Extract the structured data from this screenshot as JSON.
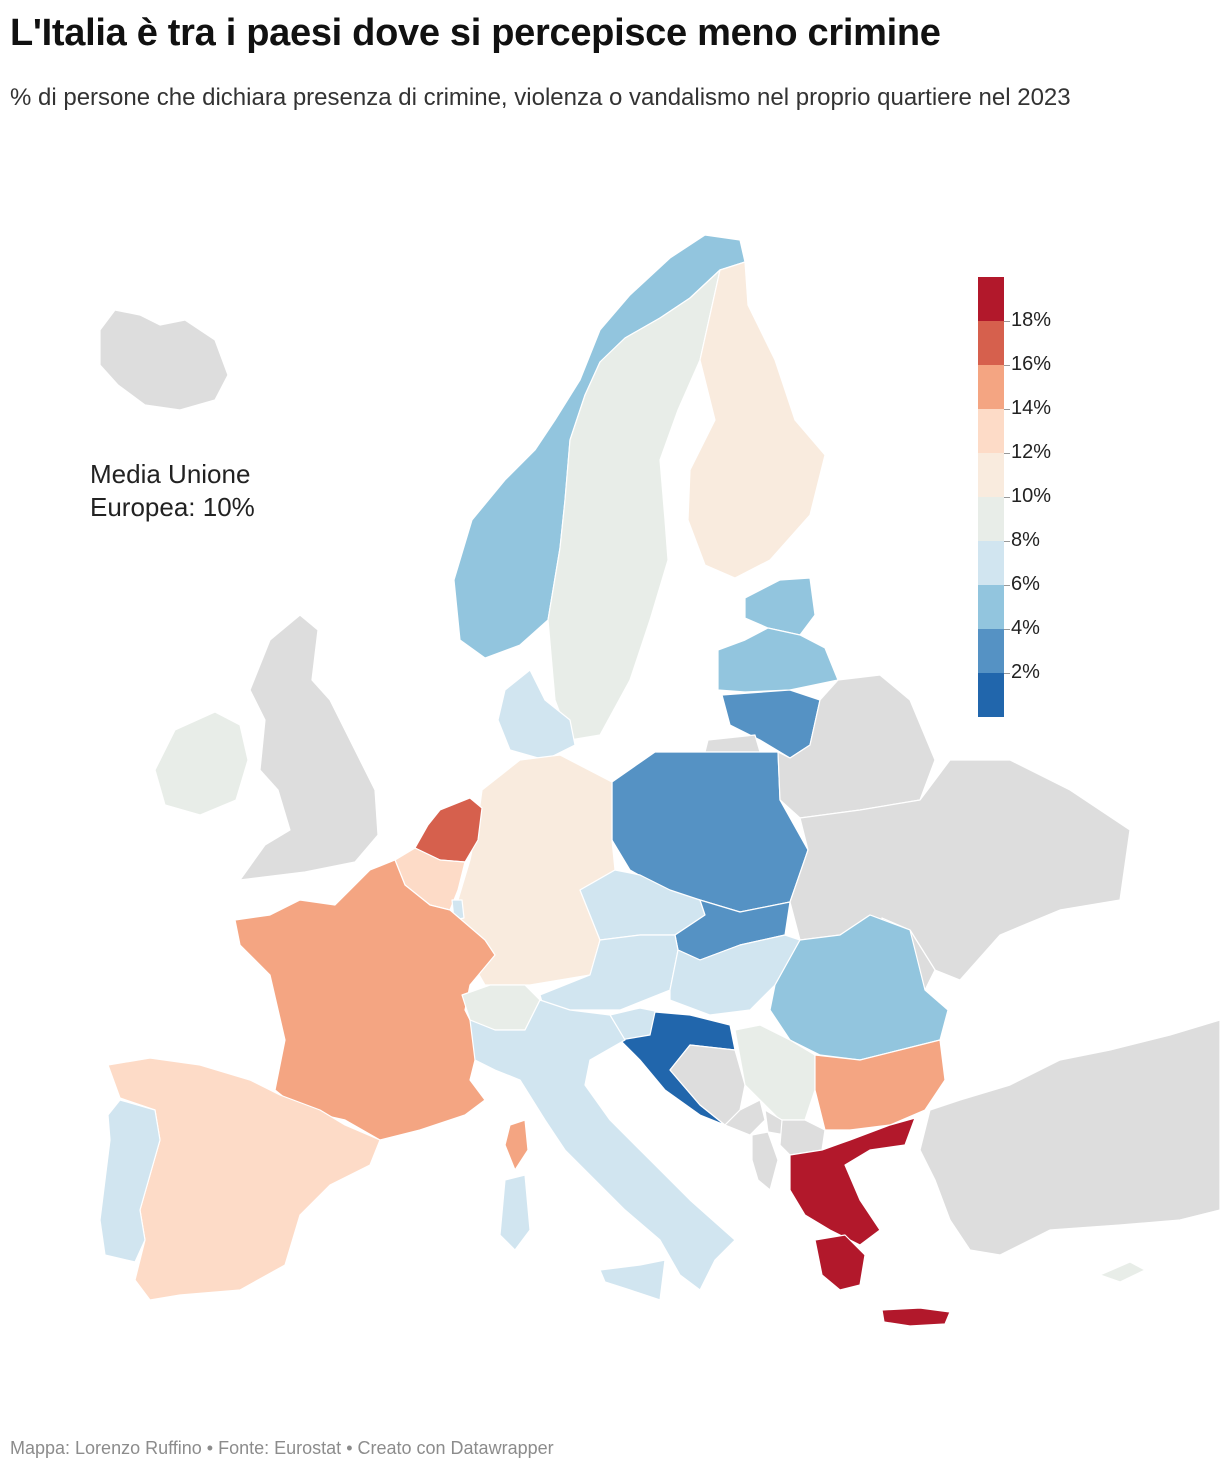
{
  "title": "L'Italia è tra i paesi dove si percepisce meno crimine",
  "subtitle": "% di persone che dichiara presenza di crimine, violenza o vandalismo nel proprio quartiere nel 2023",
  "annotation": "Media Unione Europea: 10%",
  "legend": {
    "labels": [
      "18%",
      "16%",
      "14%",
      "12%",
      "10%",
      "8%",
      "6%",
      "4%",
      "2%"
    ],
    "colors": [
      "#b2182b",
      "#d6604d",
      "#f4a582",
      "#fddbc7",
      "#f9ebde",
      "#e8ede8",
      "#d1e5f0",
      "#92c5de",
      "#5592c4",
      "#2166ac"
    ]
  },
  "map": {
    "no_data_color": "#dddddd",
    "countries": [
      {
        "name": "Iceland",
        "value": null
      },
      {
        "name": "Ireland",
        "value": 9
      },
      {
        "name": "United Kingdom",
        "value": null
      },
      {
        "name": "Norway",
        "value": 5
      },
      {
        "name": "Sweden",
        "value": 9
      },
      {
        "name": "Finland",
        "value": 11
      },
      {
        "name": "Denmark",
        "value": 7
      },
      {
        "name": "Estonia",
        "value": 5
      },
      {
        "name": "Latvia",
        "value": 5
      },
      {
        "name": "Lithuania",
        "value": 3
      },
      {
        "name": "Poland",
        "value": 3
      },
      {
        "name": "Germany",
        "value": 11
      },
      {
        "name": "Netherlands",
        "value": 17
      },
      {
        "name": "Belgium",
        "value": 13
      },
      {
        "name": "Luxembourg",
        "value": 7
      },
      {
        "name": "France",
        "value": 15
      },
      {
        "name": "Spain",
        "value": 13
      },
      {
        "name": "Portugal",
        "value": 7
      },
      {
        "name": "Switzerland",
        "value": 9
      },
      {
        "name": "Austria",
        "value": 7
      },
      {
        "name": "Czechia",
        "value": 7
      },
      {
        "name": "Slovakia",
        "value": 3
      },
      {
        "name": "Hungary",
        "value": 7
      },
      {
        "name": "Slovenia",
        "value": 7
      },
      {
        "name": "Croatia",
        "value": 1
      },
      {
        "name": "Italy",
        "value": 7
      },
      {
        "name": "Serbia",
        "value": 9
      },
      {
        "name": "Romania",
        "value": 5
      },
      {
        "name": "Bulgaria",
        "value": 15
      },
      {
        "name": "Greece",
        "value": 19
      },
      {
        "name": "Cyprus",
        "value": 9
      },
      {
        "name": "Malta",
        "value": 7
      },
      {
        "name": "Belarus",
        "value": null
      },
      {
        "name": "Ukraine",
        "value": null
      },
      {
        "name": "Moldova",
        "value": null
      },
      {
        "name": "Turkey",
        "value": null
      },
      {
        "name": "Bosnia and Herzegovina",
        "value": null
      },
      {
        "name": "Montenegro",
        "value": null
      },
      {
        "name": "Albania",
        "value": null
      },
      {
        "name": "North Macedonia",
        "value": null
      },
      {
        "name": "Kosovo",
        "value": null
      },
      {
        "name": "Russia (Kaliningrad)",
        "value": null
      }
    ]
  },
  "footer": {
    "map_by": "Mappa: Lorenzo Ruffino",
    "separator": " • ",
    "source": "Fonte: Eurostat",
    "tool": "Creato con Datawrapper"
  }
}
